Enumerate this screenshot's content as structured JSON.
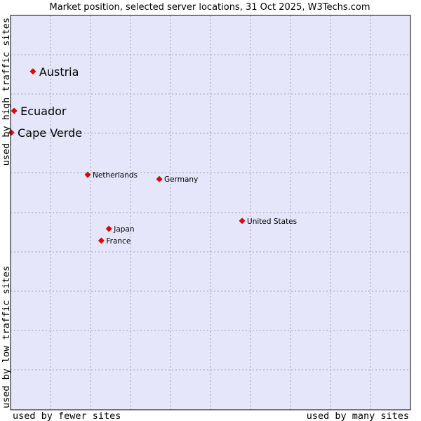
{
  "chart_data": {
    "type": "scatter",
    "title": "Market position, selected server locations, 31 Oct 2025, W3Techs.com",
    "xlabel_left": "used by fewer sites",
    "xlabel_right": "used by many sites",
    "ylabel_bottom": "used by low traffic sites",
    "ylabel_top": "used by high traffic sites",
    "xlim": [
      0,
      100
    ],
    "ylim": [
      0,
      100
    ],
    "grid": true,
    "colors": {
      "plot_background": "#e6e6fa",
      "grid": "#a0a0b4",
      "point": "#ee0000",
      "border": "#000000"
    },
    "points": [
      {
        "label": "Austria",
        "x": 5.6,
        "y": 85.8,
        "size": "large"
      },
      {
        "label": "Ecuador",
        "x": 0.9,
        "y": 75.8,
        "size": "large"
      },
      {
        "label": "Cape Verde",
        "x": 0.2,
        "y": 70.3,
        "size": "large"
      },
      {
        "label": "Netherlands",
        "x": 19.3,
        "y": 59.6,
        "size": "small"
      },
      {
        "label": "Germany",
        "x": 37.2,
        "y": 58.5,
        "size": "small"
      },
      {
        "label": "United States",
        "x": 57.9,
        "y": 47.9,
        "size": "small"
      },
      {
        "label": "Japan",
        "x": 24.6,
        "y": 45.9,
        "size": "small"
      },
      {
        "label": "France",
        "x": 22.7,
        "y": 42.9,
        "size": "small"
      }
    ]
  }
}
